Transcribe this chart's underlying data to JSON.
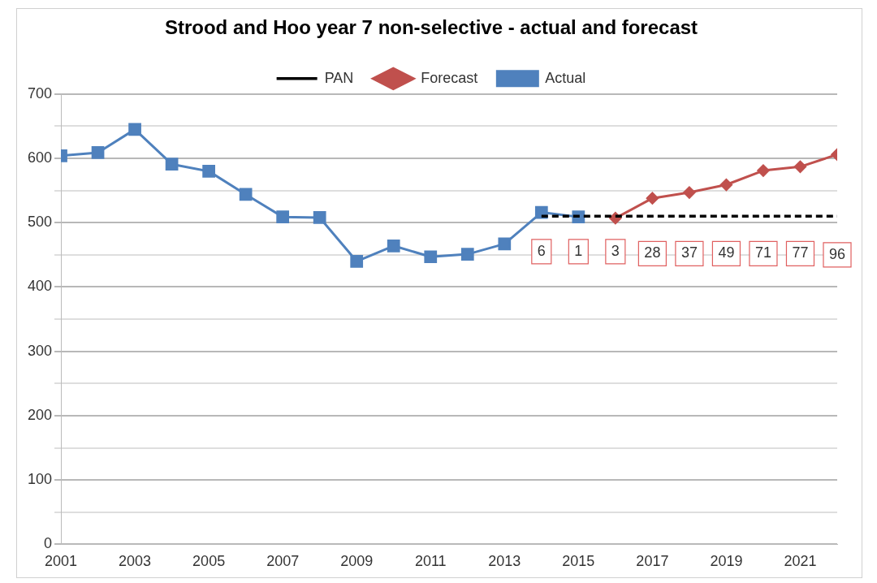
{
  "chart_data": {
    "type": "line",
    "title": "Strood and Hoo year 7 non-selective - actual and forecast",
    "x": [
      2001,
      2002,
      2003,
      2004,
      2005,
      2006,
      2007,
      2008,
      2009,
      2010,
      2011,
      2012,
      2013,
      2014,
      2015,
      2016,
      2017,
      2018,
      2019,
      2020,
      2021,
      2022
    ],
    "series": [
      {
        "name": "Forecast",
        "color": "#c0504d",
        "marker": "diamond",
        "values": [
          null,
          null,
          null,
          null,
          null,
          null,
          null,
          null,
          null,
          null,
          null,
          null,
          null,
          null,
          null,
          507,
          538,
          547,
          559,
          581,
          587,
          606
        ]
      },
      {
        "name": "Actual",
        "color": "#4f81bd",
        "marker": "square",
        "values": [
          604,
          609,
          645,
          591,
          580,
          544,
          509,
          508,
          440,
          464,
          447,
          451,
          467,
          516,
          509,
          null,
          null,
          null,
          null,
          null,
          null,
          null
        ]
      },
      {
        "name": "PAN",
        "color": "#000000",
        "marker": "none",
        "line_style": "dashed",
        "x": [
          2014,
          2022
        ],
        "values": [
          510,
          510
        ]
      }
    ],
    "xlim": [
      2001,
      2022
    ],
    "xticks": [
      2001,
      2003,
      2005,
      2007,
      2009,
      2011,
      2013,
      2015,
      2017,
      2019,
      2021
    ],
    "ylim": [
      0,
      700
    ],
    "yticks": [
      0,
      {
        "value": 50,
        "label": null
      },
      100,
      {
        "value": 150,
        "label": null
      },
      200,
      {
        "value": 250,
        "label": null
      },
      300,
      {
        "value": 350,
        "label": null
      },
      400,
      {
        "value": 450,
        "label": null
      },
      500,
      {
        "value": 550,
        "label": null
      },
      600,
      {
        "value": 650,
        "label": null
      },
      700
    ],
    "grid": "y",
    "legend": "top",
    "annotations": [
      {
        "text": "6",
        "x": 2014,
        "y": 455
      },
      {
        "text": "1",
        "x": 2015,
        "y": 455
      },
      {
        "text": "3",
        "x": 2016,
        "y": 455
      },
      {
        "text": "28",
        "x": 2017,
        "y": 452
      },
      {
        "text": "37",
        "x": 2018,
        "y": 452
      },
      {
        "text": "49",
        "x": 2019,
        "y": 452
      },
      {
        "text": "71",
        "x": 2020,
        "y": 452
      },
      {
        "text": "77",
        "x": 2021,
        "y": 452
      },
      {
        "text": "96",
        "x": 2022,
        "y": 450
      }
    ]
  }
}
